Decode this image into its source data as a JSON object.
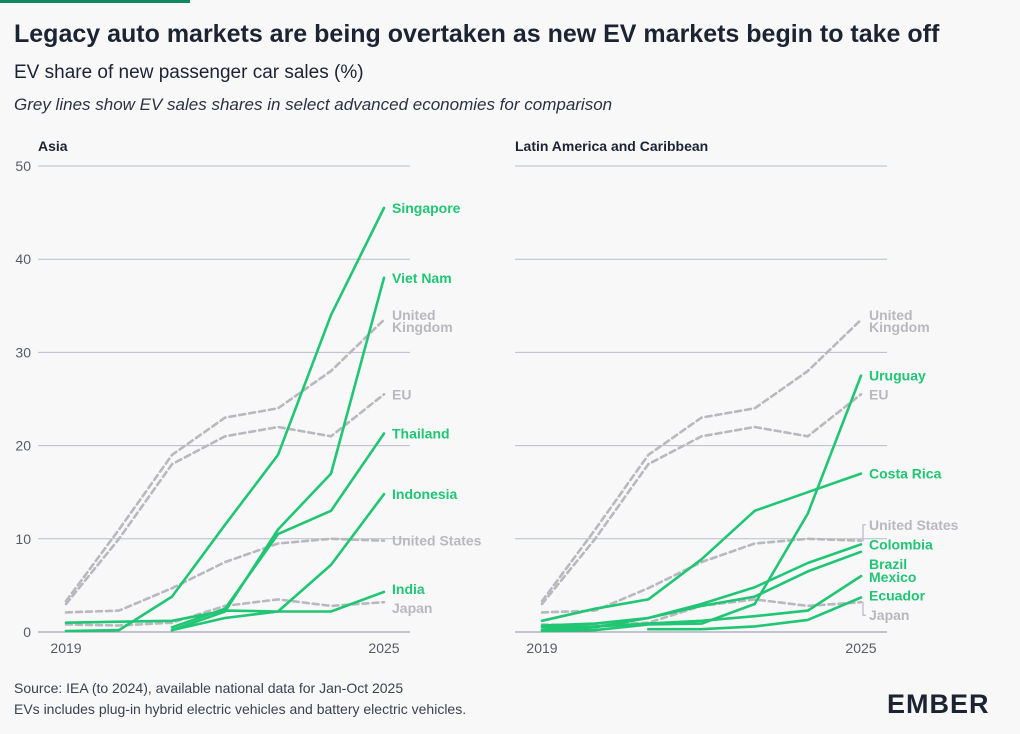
{
  "title": "Legacy auto markets are being overtaken as new EV markets begin to take off",
  "subtitle": "EV share of new passenger car sales (%)",
  "note": "Grey lines show EV sales shares in select advanced economies for comparison",
  "footer": {
    "source": "Source: IEA (to 2024), available national data for Jan-Oct 2025",
    "definition": "EVs includes plug-in hybrid electric vehicles and battery electric vehicles."
  },
  "logo": {
    "text": "EMBER"
  },
  "colors": {
    "green": "#20c673",
    "grey": "#b8b8be",
    "grid": "#b8bccd",
    "accent": "#0f8a5f",
    "text": "#1c2333",
    "tick": "#555b66"
  },
  "chart_data": [
    {
      "type": "line",
      "panel": "Asia",
      "x": [
        2019,
        2020,
        2021,
        2022,
        2023,
        2024,
        2025
      ],
      "xticks": [
        "2019",
        "2025"
      ],
      "yticks": [
        "0",
        "10",
        "20",
        "30",
        "40",
        "50"
      ],
      "ylim": [
        0,
        50
      ],
      "grid": true,
      "series": [
        {
          "name": "Singapore",
          "group": "focus",
          "values": [
            0.1,
            0.2,
            3.8,
            11.5,
            19,
            34,
            45.5
          ]
        },
        {
          "name": "Viet Nam",
          "group": "focus",
          "values": [
            null,
            null,
            0.2,
            2.2,
            11,
            17,
            38
          ]
        },
        {
          "name": "Thailand",
          "group": "focus",
          "values": [
            null,
            null,
            0.5,
            2.5,
            10.5,
            13,
            21.3
          ]
        },
        {
          "name": "Indonesia",
          "group": "focus",
          "values": [
            null,
            null,
            0.2,
            1.5,
            2.2,
            7.2,
            14.8
          ]
        },
        {
          "name": "India",
          "group": "focus",
          "values": [
            1,
            1.1,
            1.2,
            2.3,
            2.2,
            2.2,
            4.3
          ]
        },
        {
          "name": "United Kingdom",
          "group": "comparison",
          "values": [
            3.3,
            11,
            19,
            23,
            24,
            28,
            33.5
          ]
        },
        {
          "name": "EU",
          "group": "comparison",
          "values": [
            3,
            10,
            18,
            21,
            22,
            21,
            25.5
          ]
        },
        {
          "name": "United States",
          "group": "comparison",
          "values": [
            2.1,
            2.3,
            4.7,
            7.5,
            9.5,
            10,
            9.8
          ]
        },
        {
          "name": "Japan",
          "group": "comparison",
          "values": [
            0.8,
            0.7,
            1,
            2.8,
            3.5,
            2.8,
            3.2
          ]
        }
      ],
      "labels": [
        {
          "series": "Singapore",
          "text": "Singapore",
          "y": 45.5
        },
        {
          "series": "Viet Nam",
          "text": "Viet Nam",
          "y": 38
        },
        {
          "series": "United Kingdom",
          "text": "United",
          "text2": "Kingdom",
          "y": 34
        },
        {
          "series": "EU",
          "text": "EU",
          "y": 25.5
        },
        {
          "series": "Thailand",
          "text": "Thailand",
          "y": 21.3
        },
        {
          "series": "Indonesia",
          "text": "Indonesia",
          "y": 14.8
        },
        {
          "series": "United States",
          "text": "United States",
          "y": 9.8
        },
        {
          "series": "India",
          "text": "India",
          "y": 4.6
        },
        {
          "series": "Japan",
          "text": "Japan",
          "y": 2.6
        }
      ]
    },
    {
      "type": "line",
      "panel": "Latin America and Caribbean",
      "x": [
        2019,
        2020,
        2021,
        2022,
        2023,
        2024,
        2025
      ],
      "xticks": [
        "2019",
        "2025"
      ],
      "ylim": [
        0,
        50
      ],
      "grid": true,
      "series": [
        {
          "name": "Uruguay",
          "group": "focus",
          "values": [
            0.1,
            0.2,
            0.8,
            0.9,
            3,
            12.7,
            27.5
          ]
        },
        {
          "name": "Costa Rica",
          "group": "focus",
          "values": [
            1.2,
            2.5,
            3.5,
            7.8,
            13,
            15,
            17
          ]
        },
        {
          "name": "Colombia",
          "group": "focus",
          "values": [
            0.7,
            0.9,
            1.5,
            3,
            4.8,
            7.4,
            9.4
          ]
        },
        {
          "name": "Brazil",
          "group": "focus",
          "values": [
            0.2,
            0.5,
            1.5,
            2.8,
            3.8,
            6.5,
            8.6
          ]
        },
        {
          "name": "Mexico",
          "group": "focus",
          "values": [
            0.5,
            0.6,
            0.9,
            1.2,
            1.7,
            2.3,
            6
          ]
        },
        {
          "name": "Ecuador",
          "group": "focus",
          "values": [
            null,
            null,
            0.3,
            0.3,
            0.6,
            1.3,
            3.7
          ]
        },
        {
          "name": "United Kingdom",
          "group": "comparison",
          "values": [
            3.3,
            11,
            19,
            23,
            24,
            28,
            33.5
          ]
        },
        {
          "name": "EU",
          "group": "comparison",
          "values": [
            3,
            10,
            18,
            21,
            22,
            21,
            25.5
          ]
        },
        {
          "name": "United States",
          "group": "comparison",
          "values": [
            2.1,
            2.3,
            4.7,
            7.5,
            9.5,
            10,
            9.8
          ]
        },
        {
          "name": "Japan",
          "group": "comparison",
          "values": [
            0.8,
            0.7,
            1,
            2.8,
            3.5,
            2.8,
            3.2
          ]
        }
      ],
      "labels": [
        {
          "series": "United Kingdom",
          "text": "United",
          "text2": "Kingdom",
          "y": 34
        },
        {
          "series": "Uruguay",
          "text": "Uruguay",
          "y": 27.5
        },
        {
          "series": "EU",
          "text": "EU",
          "y": 25.5
        },
        {
          "series": "Costa Rica",
          "text": "Costa Rica",
          "y": 17
        },
        {
          "series": "United States",
          "text": "United States",
          "y": 11.5,
          "bracket": true
        },
        {
          "series": "Colombia",
          "text": "Colombia",
          "y": 9.4
        },
        {
          "series": "Brazil",
          "text": "Brazil",
          "y": 7.3
        },
        {
          "series": "Mexico",
          "text": "Mexico",
          "y": 5.9
        },
        {
          "series": "Ecuador",
          "text": "Ecuador",
          "y": 3.9
        },
        {
          "series": "Japan",
          "text": "Japan",
          "y": 1.8,
          "bracket": true
        }
      ]
    }
  ]
}
